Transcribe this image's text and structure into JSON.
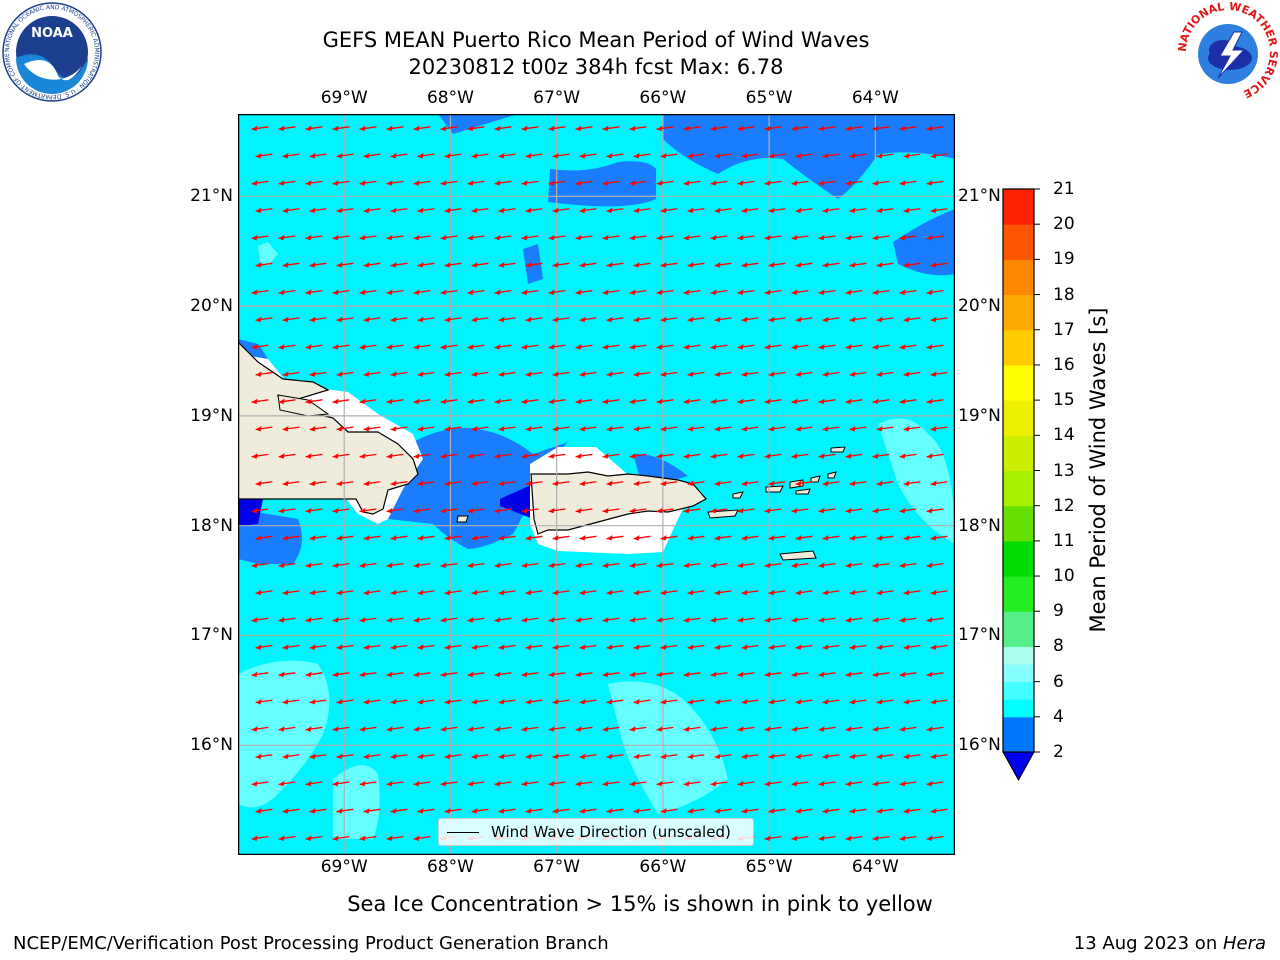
{
  "header": {
    "title_line1": "GEFS MEAN Puerto Rico Mean Period of Wind Waves",
    "title_line2": "20230812 t00z 384h fcst   Max: 6.78"
  },
  "logos": {
    "noaa": {
      "text": "NOAA",
      "ring_text": "NATIONAL OCEANIC AND ATMOSPHERIC ADMINISTRATION · U.S. DEPARTMENT OF COMMERCE"
    },
    "nws": {
      "ring_text": "NATIONAL WEATHER SERVICE"
    }
  },
  "map": {
    "lon_labels": [
      "69°W",
      "68°W",
      "67°W",
      "66°W",
      "65°W",
      "64°W"
    ],
    "lat_labels": [
      "21°N",
      "20°N",
      "19°N",
      "18°N",
      "17°N",
      "16°N"
    ],
    "lon_range": [
      -70.0,
      -63.25
    ],
    "lat_range": [
      15.0,
      21.75
    ],
    "grid": true,
    "legend_label": "Wind Wave Direction (unscaled)",
    "arrow_color": "#ff0000",
    "land_color": "#efecdc",
    "background_class_color": "#00ffff"
  },
  "colorbar": {
    "label": "Mean Period of Wind Waves [s]",
    "ticks": [
      "2",
      "4",
      "6",
      "8",
      "9",
      "10",
      "11",
      "12",
      "13",
      "14",
      "15",
      "16",
      "17",
      "18",
      "19",
      "20",
      "21"
    ],
    "under_color": "#0000ee",
    "colors": [
      "#0077ff",
      "#00ffff",
      "#44ffff",
      "#88ffff",
      "#aaffee",
      "#55ee88",
      "#22ee22",
      "#00dd00",
      "#66e000",
      "#aaee00",
      "#ccee00",
      "#eeee00",
      "#ffff00",
      "#ffcc00",
      "#ffaa00",
      "#ff8800",
      "#ff5500",
      "#ff2200",
      "#ff0000"
    ]
  },
  "chart_data": {
    "type": "heatmap",
    "title": "GEFS MEAN Puerto Rico Mean Period of Wind Waves",
    "subtitle": "20230812 t00z 384h fcst   Max: 6.78",
    "xlim": [
      -70.0,
      -63.25
    ],
    "ylim": [
      15.0,
      21.75
    ],
    "x_ticks": [
      "69°W",
      "68°W",
      "67°W",
      "66°W",
      "65°W",
      "64°W"
    ],
    "y_ticks": [
      "21°N",
      "20°N",
      "19°N",
      "18°N",
      "17°N",
      "16°N"
    ],
    "colorbar_label": "Mean Period of Wind Waves [s]",
    "colorbar_ticks": [
      2,
      4,
      6,
      8,
      9,
      10,
      11,
      12,
      13,
      14,
      15,
      16,
      17,
      18,
      19,
      20,
      21
    ],
    "max_value": 6.78,
    "grid": true,
    "legend": {
      "entry": "Wind Wave Direction (unscaled)",
      "placement": "bottom-center"
    }
  },
  "footer": {
    "note": "Sea Ice Concentration > 15% is shown in pink to yellow",
    "left": "NCEP/EMC/Verification Post Processing Product Generation Branch",
    "right_date": "13 Aug 2023 on ",
    "right_machine": "Hera"
  }
}
